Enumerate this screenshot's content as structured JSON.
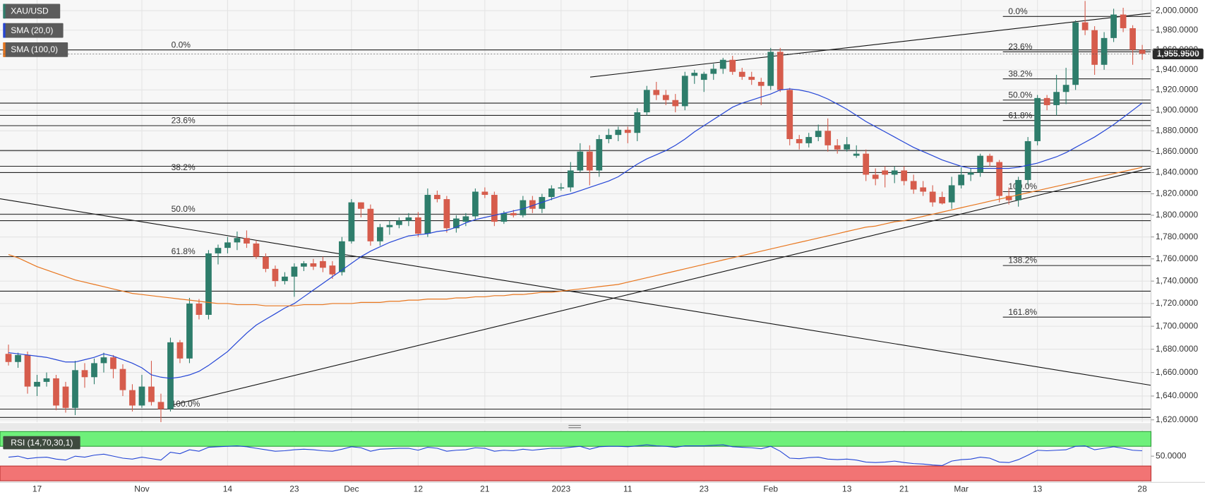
{
  "chart_data": {
    "type": "candlestick",
    "categories": [
      null,
      null,
      null,
      "17",
      null,
      null,
      null,
      null,
      null,
      null,
      null,
      null,
      null,
      null,
      "Nov",
      null,
      null,
      null,
      null,
      null,
      null,
      null,
      null,
      "14",
      null,
      null,
      null,
      null,
      null,
      null,
      "23",
      null,
      null,
      null,
      null,
      null,
      "Dec",
      null,
      null,
      null,
      null,
      null,
      null,
      "12",
      null,
      null,
      null,
      null,
      null,
      null,
      "21",
      null,
      null,
      null,
      null,
      null,
      null,
      null,
      "2023",
      null,
      null,
      null,
      null,
      null,
      null,
      "11",
      null,
      null,
      null,
      null,
      null,
      null,
      null,
      "23",
      null,
      null,
      null,
      null,
      null,
      null,
      "Feb",
      null,
      null,
      null,
      null,
      null,
      null,
      null,
      "13",
      null,
      null,
      null,
      null,
      null,
      "21",
      null,
      null,
      null,
      null,
      null,
      "Mar",
      null,
      null,
      null,
      null,
      null,
      null,
      null,
      "13",
      null,
      null,
      null,
      null,
      null,
      null,
      null,
      null,
      null,
      null,
      "28"
    ],
    "series": [
      {
        "name": "XAU/USD",
        "color_up": "#2e7d6b",
        "color_down": "#d65c4c",
        "open": [
          1676,
          1669,
          1675,
          1648,
          1652,
          1655,
          1648,
          1630,
          1662,
          1656,
          1668,
          1673,
          1663,
          1645,
          1632,
          1648,
          1635,
          1629,
          1686,
          1672,
          1720,
          1710,
          1765,
          1770,
          1775,
          1779,
          1774,
          1762,
          1751,
          1740,
          1744,
          1753,
          1756,
          1758,
          1754,
          1748,
          1776,
          1812,
          1806,
          1776,
          1789,
          1791,
          1795,
          1798,
          1783,
          1819,
          1815,
          1788,
          1794,
          1799,
          1822,
          1819,
          1794,
          1802,
          1800,
          1814,
          1806,
          1817,
          1825,
          1826,
          1842,
          1860,
          1842,
          1872,
          1876,
          1881,
          1878,
          1898,
          1920,
          1915,
          1910,
          1904,
          1934,
          1930,
          1936,
          1941,
          1950,
          1938,
          1933,
          1928,
          1924,
          1958,
          1920,
          1872,
          1868,
          1874,
          1880,
          1866,
          1862,
          1856,
          1858,
          1838,
          1842,
          1838,
          1842,
          1832,
          1826,
          1822,
          1817,
          1812,
          1828,
          1838,
          1840,
          1856,
          1850,
          1818,
          1814,
          1833,
          1870,
          1912,
          1905,
          1918,
          1925,
          1988,
          1980,
          1945,
          1972,
          1996,
          1982,
          1960
        ],
        "high": [
          1684,
          1677,
          1678,
          1658,
          1660,
          1658,
          1652,
          1670,
          1668,
          1672,
          1677,
          1675,
          1667,
          1650,
          1658,
          1670,
          1642,
          1690,
          1688,
          1725,
          1724,
          1768,
          1773,
          1780,
          1785,
          1786,
          1777,
          1765,
          1754,
          1748,
          1756,
          1758,
          1760,
          1762,
          1758,
          1780,
          1815,
          1812,
          1810,
          1792,
          1795,
          1798,
          1802,
          1803,
          1825,
          1823,
          1818,
          1800,
          1802,
          1825,
          1826,
          1822,
          1804,
          1805,
          1818,
          1818,
          1820,
          1828,
          1830,
          1850,
          1868,
          1866,
          1876,
          1882,
          1884,
          1884,
          1902,
          1924,
          1928,
          1920,
          1916,
          1938,
          1940,
          1938,
          1946,
          1952,
          1954,
          1942,
          1938,
          1932,
          1962,
          1962,
          1922,
          1876,
          1878,
          1886,
          1892,
          1872,
          1874,
          1866,
          1862,
          1844,
          1846,
          1846,
          1846,
          1838,
          1832,
          1828,
          1822,
          1836,
          1845,
          1844,
          1858,
          1858,
          1852,
          1826,
          1836,
          1874,
          1915,
          1915,
          1935,
          1942,
          1990,
          2010,
          1984,
          1978,
          2002,
          2003,
          1985,
          1965
        ],
        "low": [
          1666,
          1664,
          1642,
          1640,
          1648,
          1628,
          1626,
          1624,
          1647,
          1650,
          1660,
          1655,
          1640,
          1627,
          1630,
          1632,
          1618,
          1627,
          1668,
          1668,
          1706,
          1706,
          1755,
          1765,
          1768,
          1770,
          1760,
          1748,
          1735,
          1737,
          1726,
          1749,
          1750,
          1748,
          1742,
          1745,
          1774,
          1798,
          1772,
          1772,
          1782,
          1788,
          1790,
          1780,
          1780,
          1812,
          1784,
          1784,
          1790,
          1796,
          1816,
          1790,
          1792,
          1798,
          1798,
          1802,
          1802,
          1814,
          1823,
          1822,
          1840,
          1828,
          1836,
          1868,
          1870,
          1868,
          1870,
          1895,
          1910,
          1905,
          1898,
          1900,
          1926,
          1918,
          1930,
          1936,
          1935,
          1930,
          1925,
          1905,
          1920,
          1918,
          1866,
          1862,
          1864,
          1870,
          1860,
          1858,
          1860,
          1854,
          1832,
          1828,
          1826,
          1830,
          1828,
          1820,
          1818,
          1808,
          1810,
          1806,
          1825,
          1832,
          1836,
          1846,
          1812,
          1810,
          1808,
          1828,
          1866,
          1900,
          1895,
          1906,
          1920,
          1975,
          1935,
          1940,
          1968,
          1978,
          1945,
          1950
        ],
        "close": [
          1669,
          1675,
          1648,
          1652,
          1655,
          1632,
          1630,
          1662,
          1656,
          1668,
          1673,
          1663,
          1645,
          1632,
          1648,
          1635,
          1629,
          1686,
          1672,
          1720,
          1710,
          1765,
          1770,
          1775,
          1779,
          1774,
          1762,
          1751,
          1740,
          1744,
          1753,
          1756,
          1753,
          1752,
          1746,
          1776,
          1812,
          1806,
          1776,
          1789,
          1791,
          1795,
          1798,
          1783,
          1819,
          1815,
          1788,
          1797,
          1799,
          1822,
          1819,
          1794,
          1802,
          1800,
          1814,
          1806,
          1817,
          1825,
          1826,
          1842,
          1860,
          1842,
          1872,
          1876,
          1881,
          1878,
          1898,
          1920,
          1915,
          1910,
          1904,
          1934,
          1937,
          1936,
          1941,
          1950,
          1938,
          1933,
          1930,
          1924,
          1958,
          1920,
          1872,
          1868,
          1874,
          1880,
          1866,
          1862,
          1867,
          1858,
          1838,
          1834,
          1838,
          1842,
          1832,
          1824,
          1822,
          1812,
          1811,
          1828,
          1838,
          1840,
          1856,
          1850,
          1818,
          1814,
          1833,
          1870,
          1912,
          1905,
          1918,
          1925,
          1988,
          1980,
          1945,
          1972,
          1996,
          1982,
          1960,
          1955.95
        ]
      },
      {
        "name": "SMA (20,0)",
        "color": "#2445d6",
        "values": [
          1677,
          1676,
          1675,
          1674,
          1673,
          1671,
          1669,
          1669,
          1671,
          1673,
          1676,
          1674,
          1671,
          1668,
          1664,
          1658,
          1656,
          1655,
          1656,
          1658,
          1661,
          1666,
          1672,
          1678,
          1686,
          1694,
          1701,
          1706,
          1711,
          1716,
          1720,
          1726,
          1732,
          1738,
          1744,
          1750,
          1756,
          1762,
          1767,
          1771,
          1775,
          1778,
          1781,
          1782,
          1783,
          1785,
          1786,
          1789,
          1793,
          1796,
          1798,
          1800,
          1802,
          1804,
          1806,
          1809,
          1812,
          1815,
          1818,
          1820,
          1823,
          1826,
          1829,
          1832,
          1836,
          1842,
          1848,
          1853,
          1857,
          1861,
          1866,
          1872,
          1879,
          1885,
          1891,
          1897,
          1903,
          1907,
          1910,
          1913,
          1916,
          1920,
          1921,
          1920,
          1918,
          1915,
          1911,
          1906,
          1901,
          1895,
          1889,
          1884,
          1879,
          1874,
          1869,
          1864,
          1860,
          1856,
          1852,
          1849,
          1846,
          1844,
          1844,
          1844,
          1844,
          1844,
          1845,
          1847,
          1849,
          1852,
          1855,
          1859,
          1864,
          1869,
          1874,
          1880,
          1886,
          1893,
          1900,
          1907
        ]
      },
      {
        "name": "SMA (100,0)",
        "color": "#e8761e",
        "values": [
          1764,
          1761,
          1757,
          1753,
          1750,
          1747,
          1744,
          1741,
          1739,
          1737,
          1735,
          1733,
          1731,
          1729,
          1728,
          1727,
          1726,
          1725,
          1724,
          1723,
          1722,
          1721,
          1720,
          1720,
          1719,
          1719,
          1719,
          1718,
          1718,
          1718,
          1718,
          1719,
          1719,
          1719,
          1720,
          1720,
          1720,
          1721,
          1721,
          1721,
          1722,
          1722,
          1723,
          1723,
          1724,
          1724,
          1724,
          1725,
          1725,
          1726,
          1726,
          1727,
          1727,
          1728,
          1728,
          1729,
          1730,
          1730,
          1731,
          1732,
          1733,
          1734,
          1735,
          1736,
          1737,
          1739,
          1741,
          1743,
          1745,
          1747,
          1749,
          1751,
          1753,
          1755,
          1757,
          1759,
          1761,
          1763,
          1765,
          1767,
          1769,
          1771,
          1773,
          1775,
          1777,
          1779,
          1781,
          1783,
          1785,
          1787,
          1789,
          1790,
          1792,
          1794,
          1795,
          1797,
          1799,
          1801,
          1803,
          1805,
          1807,
          1809,
          1811,
          1813,
          1815,
          1817,
          1819,
          1821,
          1823,
          1825,
          1827,
          1829,
          1831,
          1833,
          1835,
          1837,
          1839,
          1841,
          1843,
          1845
        ]
      }
    ],
    "last_price": {
      "value": 1955.95,
      "label": "1,955.9500"
    },
    "log_scale": true,
    "grid": true,
    "ylim": [
      1618,
      2011
    ],
    "yticks": [
      {
        "value": 1620,
        "label": "1,620.0000"
      },
      {
        "value": 1640,
        "label": "1,640.0000"
      },
      {
        "value": 1660,
        "label": "1,660.0000"
      },
      {
        "value": 1680,
        "label": "1,680.0000"
      },
      {
        "value": 1700,
        "label": "1,700.0000"
      },
      {
        "value": 1720,
        "label": "1,720.0000"
      },
      {
        "value": 1740,
        "label": "1,740.0000"
      },
      {
        "value": 1760,
        "label": "1,760.0000"
      },
      {
        "value": 1780,
        "label": "1,780.0000"
      },
      {
        "value": 1800,
        "label": "1,800.0000"
      },
      {
        "value": 1820,
        "label": "1,820.0000"
      },
      {
        "value": 1840,
        "label": "1,840.0000"
      },
      {
        "value": 1860,
        "label": "1,860.0000"
      },
      {
        "value": 1880,
        "label": "1,880.0000"
      },
      {
        "value": 1900,
        "label": "1,900.0000"
      },
      {
        "value": 1920,
        "label": "1,920.0000"
      },
      {
        "value": 1940,
        "label": "1,940.0000"
      },
      {
        "value": 1960,
        "label": "1,960.0000"
      },
      {
        "value": 1980,
        "label": "1,980.0000"
      },
      {
        "value": 2000,
        "label": "2,000.0000"
      }
    ],
    "fib_left": [
      {
        "label": "0.0%",
        "price": 1960
      },
      {
        "label": "23.6%",
        "price": 1885
      },
      {
        "label": "38.2%",
        "price": 1840
      },
      {
        "label": "50.0%",
        "price": 1801
      },
      {
        "label": "61.8%",
        "price": 1762
      },
      {
        "label": "100.0%",
        "price": 1629
      }
    ],
    "fib_right": [
      {
        "label": "0.0%",
        "price": 1994
      },
      {
        "label": "23.6%",
        "price": 1958
      },
      {
        "label": "38.2%",
        "price": 1931
      },
      {
        "label": "50.0%",
        "price": 1910
      },
      {
        "label": "61.8%",
        "price": 1890
      },
      {
        "label": "100.0%",
        "price": 1822
      },
      {
        "label": "138.2%",
        "price": 1754
      },
      {
        "label": "161.8%",
        "price": 1708
      }
    ],
    "levels": [
      1907,
      1895,
      1861,
      1846,
      1795,
      1731,
      1622
    ],
    "rsi": {
      "name": "RSI (14,70,30,1)",
      "color": "#2445d6",
      "ylim": [
        0,
        100
      ],
      "overbought": 70,
      "oversold": 30,
      "yticks": [
        {
          "value": 50,
          "label": "50.0000"
        }
      ],
      "values": [
        48,
        50,
        45,
        47,
        48,
        44,
        42,
        50,
        48,
        52,
        54,
        50,
        46,
        44,
        48,
        45,
        42,
        58,
        55,
        63,
        60,
        68,
        69,
        70,
        71,
        69,
        66,
        63,
        60,
        61,
        63,
        64,
        63,
        61,
        60,
        64,
        69,
        67,
        60,
        64,
        65,
        66,
        66,
        62,
        68,
        66,
        60,
        62,
        63,
        67,
        66,
        60,
        62,
        61,
        64,
        62,
        64,
        66,
        66,
        68,
        70,
        64,
        69,
        70,
        70,
        69,
        71,
        73,
        71,
        70,
        68,
        71,
        71,
        71,
        72,
        73,
        69,
        68,
        67,
        65,
        70,
        60,
        46,
        45,
        47,
        48,
        44,
        43,
        44,
        42,
        38,
        37,
        38,
        40,
        37,
        35,
        34,
        32,
        31,
        40,
        43,
        44,
        48,
        46,
        38,
        37,
        43,
        52,
        62,
        61,
        62,
        63,
        70,
        71,
        63,
        66,
        69,
        66,
        62,
        61
      ]
    }
  }
}
